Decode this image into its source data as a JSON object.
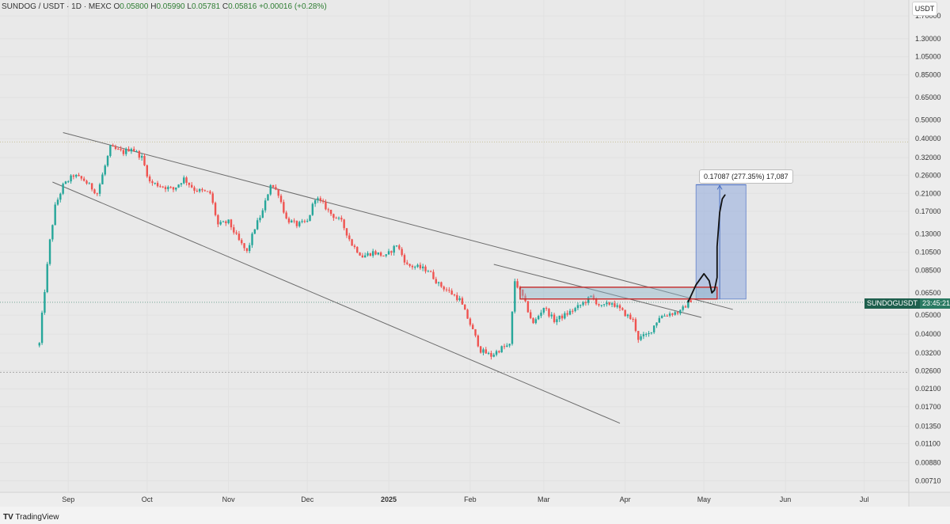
{
  "header": {
    "symbol": "SUNDOG / USDT · 1D · MEXC",
    "o_label": "O",
    "o_value": "0.05800",
    "h_label": "H",
    "h_value": "0.05990",
    "l_label": "L",
    "l_value": "0.05781",
    "c_label": "C",
    "c_value": "0.05816",
    "change": "+0.00016 (+0.28%)"
  },
  "currency_button": "USDT",
  "price_tag": {
    "symbol": "SUNDOGUSDT",
    "countdown": "23:45:21"
  },
  "measure_label": "0.17087 (277.35%) 17,087",
  "branding": {
    "logo": "TV",
    "name": "TradingView"
  },
  "colors": {
    "up": "#26a69a",
    "down": "#ef5350",
    "background": "#e9e9e9",
    "trendline": "#6b6b6b",
    "projection": "#8fa9dd",
    "zone": "#c62828"
  },
  "chart_data": {
    "type": "candlestick",
    "yscale": "log",
    "ylim": [
      0.0062,
      2.05
    ],
    "y_ticks": [
      "1.70000",
      "1.30000",
      "1.05000",
      "0.85000",
      "0.65000",
      "0.50000",
      "0.40000",
      "0.32000",
      "0.26000",
      "0.21000",
      "0.17000",
      "0.13000",
      "0.10500",
      "0.08500",
      "0.06500",
      "0.05000",
      "0.04000",
      "0.03200",
      "0.02600",
      "0.02100",
      "0.01700",
      "0.01350",
      "0.01100",
      "0.00880",
      "0.00710"
    ],
    "x_ticks": [
      "Sep",
      "Oct",
      "Nov",
      "Dec",
      "2025",
      "Feb",
      "Mar",
      "Apr",
      "May",
      "Jun",
      "Jul"
    ],
    "xlim": [
      "2024-08-06",
      "2025-07-18"
    ],
    "last_price": 0.05816,
    "horizontal_levels": [
      0.385,
      0.0255
    ],
    "keypoints": [
      [
        "2024-08-21",
        0.0255
      ],
      [
        "2024-08-23",
        0.05
      ],
      [
        "2024-08-26",
        0.12
      ],
      [
        "2024-08-28",
        0.18
      ],
      [
        "2024-08-31",
        0.23
      ],
      [
        "2024-09-04",
        0.26
      ],
      [
        "2024-09-08",
        0.245
      ],
      [
        "2024-09-13",
        0.21
      ],
      [
        "2024-09-18",
        0.36
      ],
      [
        "2024-09-23",
        0.34
      ],
      [
        "2024-09-26",
        0.36
      ],
      [
        "2024-09-30",
        0.32
      ],
      [
        "2024-10-03",
        0.24
      ],
      [
        "2024-10-07",
        0.23
      ],
      [
        "2024-10-12",
        0.22
      ],
      [
        "2024-10-16",
        0.25
      ],
      [
        "2024-10-20",
        0.22
      ],
      [
        "2024-10-26",
        0.21
      ],
      [
        "2024-10-29",
        0.145
      ],
      [
        "2024-11-02",
        0.15
      ],
      [
        "2024-11-06",
        0.12
      ],
      [
        "2024-11-09",
        0.105
      ],
      [
        "2024-11-12",
        0.14
      ],
      [
        "2024-11-15",
        0.17
      ],
      [
        "2024-11-18",
        0.235
      ],
      [
        "2024-11-21",
        0.21
      ],
      [
        "2024-11-24",
        0.155
      ],
      [
        "2024-11-28",
        0.145
      ],
      [
        "2024-12-02",
        0.15
      ],
      [
        "2024-12-05",
        0.2
      ],
      [
        "2024-12-08",
        0.185
      ],
      [
        "2024-12-11",
        0.165
      ],
      [
        "2024-12-15",
        0.15
      ],
      [
        "2024-12-19",
        0.115
      ],
      [
        "2024-12-23",
        0.1
      ],
      [
        "2024-12-27",
        0.105
      ],
      [
        "2025-01-01",
        0.1
      ],
      [
        "2025-01-05",
        0.115
      ],
      [
        "2025-01-09",
        0.09
      ],
      [
        "2025-01-13",
        0.088
      ],
      [
        "2025-01-17",
        0.085
      ],
      [
        "2025-01-21",
        0.072
      ],
      [
        "2025-01-25",
        0.066
      ],
      [
        "2025-01-29",
        0.06
      ],
      [
        "2025-02-02",
        0.045
      ],
      [
        "2025-02-06",
        0.033
      ],
      [
        "2025-02-10",
        0.031
      ],
      [
        "2025-02-14",
        0.034
      ],
      [
        "2025-02-17",
        0.035
      ],
      [
        "2025-02-19",
        0.075
      ],
      [
        "2025-02-22",
        0.062
      ],
      [
        "2025-02-26",
        0.045
      ],
      [
        "2025-03-02",
        0.055
      ],
      [
        "2025-03-06",
        0.047
      ],
      [
        "2025-03-10",
        0.05
      ],
      [
        "2025-03-15",
        0.055
      ],
      [
        "2025-03-20",
        0.062
      ],
      [
        "2025-03-24",
        0.055
      ],
      [
        "2025-03-28",
        0.058
      ],
      [
        "2025-04-01",
        0.052
      ],
      [
        "2025-04-05",
        0.047
      ],
      [
        "2025-04-07",
        0.038
      ],
      [
        "2025-04-11",
        0.04
      ],
      [
        "2025-04-15",
        0.049
      ],
      [
        "2025-04-19",
        0.051
      ],
      [
        "2025-04-23",
        0.052
      ],
      [
        "2025-04-26",
        0.05816
      ]
    ],
    "trendlines": [
      [
        [
          "2024-08-30",
          0.43
        ],
        [
          "2025-05-12",
          0.0535
        ]
      ],
      [
        [
          "2024-08-26",
          0.24
        ],
        [
          "2025-03-30",
          0.014
        ]
      ],
      [
        [
          "2025-02-10",
          0.091
        ],
        [
          "2025-04-30",
          0.0487
        ]
      ]
    ],
    "resistance_zone": {
      "from": "2025-02-20",
      "to": "2025-05-06",
      "low": 0.0605,
      "high": 0.0695
    },
    "projection_box": {
      "from": "2025-04-28",
      "to": "2025-05-17",
      "low": 0.0605,
      "high": 0.2325
    },
    "projected_path": [
      [
        "2025-04-25",
        0.0585
      ],
      [
        "2025-04-28",
        0.0715
      ],
      [
        "2025-05-01",
        0.0815
      ],
      [
        "2025-05-03",
        0.075
      ],
      [
        "2025-05-04",
        0.065
      ],
      [
        "2025-05-05",
        0.0672
      ],
      [
        "2025-05-06",
        0.078
      ],
      [
        "2025-05-06",
        0.112
      ],
      [
        "2025-05-07",
        0.168
      ],
      [
        "2025-05-08",
        0.197
      ],
      [
        "2025-05-09",
        0.206
      ]
    ]
  }
}
